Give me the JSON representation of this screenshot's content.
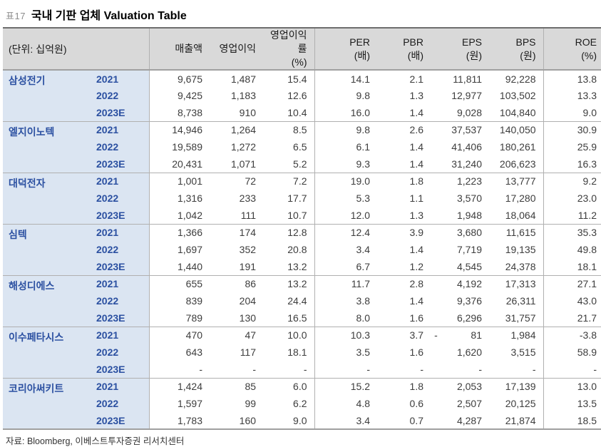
{
  "title": {
    "tag": "표17",
    "text": "국내 기판 업체 Valuation Table"
  },
  "table": {
    "unit_label": "(단위: 십억원)",
    "columns": [
      {
        "label": "매출액",
        "unit": ""
      },
      {
        "label": "영업이익",
        "unit": ""
      },
      {
        "label": "영업이익률",
        "unit": "(%)"
      },
      {
        "label": "PER",
        "unit": "(배)"
      },
      {
        "label": "PBR",
        "unit": "(배)"
      },
      {
        "label": "EPS",
        "unit": "(원)"
      },
      {
        "label": "BPS",
        "unit": "(원)"
      },
      {
        "label": "ROE",
        "unit": "(%)"
      }
    ],
    "companies": [
      {
        "name": "삼성전기",
        "rows": [
          {
            "year": "2021",
            "values": [
              "9,675",
              "1,487",
              "15.4",
              "14.1",
              "2.1",
              "11,811",
              "92,228",
              "13.8"
            ]
          },
          {
            "year": "2022",
            "values": [
              "9,425",
              "1,183",
              "12.6",
              "9.8",
              "1.3",
              "12,977",
              "103,502",
              "13.3"
            ]
          },
          {
            "year": "2023E",
            "values": [
              "8,738",
              "910",
              "10.4",
              "16.0",
              "1.4",
              "9,028",
              "104,840",
              "9.0"
            ]
          }
        ]
      },
      {
        "name": "엘지이노텍",
        "rows": [
          {
            "year": "2021",
            "values": [
              "14,946",
              "1,264",
              "8.5",
              "9.8",
              "2.6",
              "37,537",
              "140,050",
              "30.9"
            ]
          },
          {
            "year": "2022",
            "values": [
              "19,589",
              "1,272",
              "6.5",
              "6.1",
              "1.4",
              "41,406",
              "180,261",
              "25.9"
            ]
          },
          {
            "year": "2023E",
            "values": [
              "20,431",
              "1,071",
              "5.2",
              "9.3",
              "1.4",
              "31,240",
              "206,623",
              "16.3"
            ]
          }
        ]
      },
      {
        "name": "대덕전자",
        "rows": [
          {
            "year": "2021",
            "values": [
              "1,001",
              "72",
              "7.2",
              "19.0",
              "1.8",
              "1,223",
              "13,777",
              "9.2"
            ]
          },
          {
            "year": "2022",
            "values": [
              "1,316",
              "233",
              "17.7",
              "5.3",
              "1.1",
              "3,570",
              "17,280",
              "23.0"
            ]
          },
          {
            "year": "2023E",
            "values": [
              "1,042",
              "111",
              "10.7",
              "12.0",
              "1.3",
              "1,948",
              "18,064",
              "11.2"
            ]
          }
        ]
      },
      {
        "name": "심텍",
        "rows": [
          {
            "year": "2021",
            "values": [
              "1,366",
              "174",
              "12.8",
              "12.4",
              "3.9",
              "3,680",
              "11,615",
              "35.3"
            ]
          },
          {
            "year": "2022",
            "values": [
              "1,697",
              "352",
              "20.8",
              "3.4",
              "1.4",
              "7,719",
              "19,135",
              "49.8"
            ]
          },
          {
            "year": "2023E",
            "values": [
              "1,440",
              "191",
              "13.2",
              "6.7",
              "1.2",
              "4,545",
              "24,378",
              "18.1"
            ]
          }
        ]
      },
      {
        "name": "해성디에스",
        "rows": [
          {
            "year": "2021",
            "values": [
              "655",
              "86",
              "13.2",
              "11.7",
              "2.8",
              "4,192",
              "17,313",
              "27.1"
            ]
          },
          {
            "year": "2022",
            "values": [
              "839",
              "204",
              "24.4",
              "3.8",
              "1.4",
              "9,376",
              "26,311",
              "43.0"
            ]
          },
          {
            "year": "2023E",
            "values": [
              "789",
              "130",
              "16.5",
              "8.0",
              "1.6",
              "6,296",
              "31,757",
              "21.7"
            ]
          }
        ]
      },
      {
        "name": "이수페타시스",
        "rows": [
          {
            "year": "2021",
            "values": [
              "470",
              "47",
              "10.0",
              "10.3",
              "3.7",
              "-            81",
              "1,984",
              "-3.8"
            ]
          },
          {
            "year": "2022",
            "values": [
              "643",
              "117",
              "18.1",
              "3.5",
              "1.6",
              "1,620",
              "3,515",
              "58.9"
            ]
          },
          {
            "year": "2023E",
            "values": [
              "-",
              "-",
              "-",
              "-",
              "-",
              "-",
              "-",
              "-"
            ]
          }
        ]
      },
      {
        "name": "코리아써키트",
        "rows": [
          {
            "year": "2021",
            "values": [
              "1,424",
              "85",
              "6.0",
              "15.2",
              "1.8",
              "2,053",
              "17,139",
              "13.0"
            ]
          },
          {
            "year": "2022",
            "values": [
              "1,597",
              "99",
              "6.2",
              "4.8",
              "0.6",
              "2,507",
              "20,125",
              "13.5"
            ]
          },
          {
            "year": "2023E",
            "values": [
              "1,783",
              "160",
              "9.0",
              "3.4",
              "0.7",
              "4,287",
              "21,874",
              "18.5"
            ]
          }
        ]
      }
    ]
  },
  "source": "자료: Bloomberg, 이베스트투자증권 리서치센터",
  "colors": {
    "header_bg": "#d9d9d9",
    "company_panel_bg": "#dbe5f2",
    "company_text": "#2b50a1",
    "value_text": "#3d3d3d",
    "border_heavy": "#6e6e6e",
    "border_light": "#b0b0b0"
  }
}
